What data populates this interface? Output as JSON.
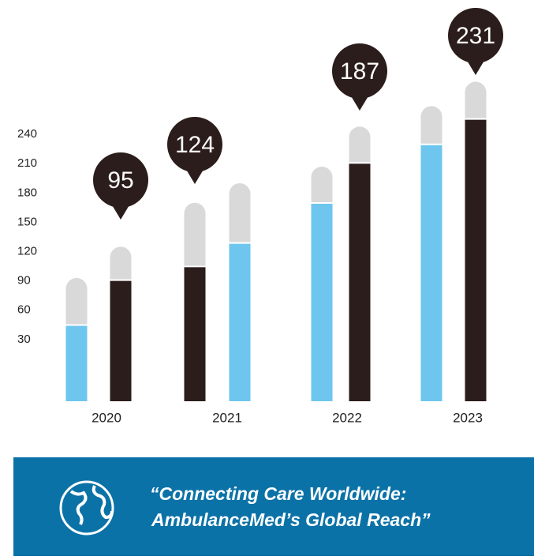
{
  "chart_data": {
    "type": "capped_bar",
    "categories": [
      "2020",
      "2021",
      "2022",
      "2023"
    ],
    "ylim": [
      -30,
      300
    ],
    "yticks": [
      30,
      60,
      90,
      120,
      150,
      180,
      210,
      240
    ],
    "cap_color": "#d9d9d9",
    "series": [
      {
        "colors": [
          "#6ec6ee",
          "#2b1d1b",
          "#6ec6ee",
          "#6ec6ee"
        ],
        "values": [
          44,
          104,
          169,
          229
        ],
        "caps": [
          49,
          66,
          38,
          40
        ]
      },
      {
        "colors": [
          "#2b1d1b",
          "#6ec6ee",
          "#2b1d1b",
          "#2b1d1b"
        ],
        "values": [
          90,
          128,
          210,
          255
        ],
        "caps": [
          35,
          62,
          38,
          39
        ]
      }
    ],
    "badges": [
      95,
      124,
      187,
      231
    ],
    "badge_color": "#2b1d1b"
  },
  "banner": {
    "lines": [
      "“Connecting Care Worldwide:",
      "AmbulanceMed’s Global Reach”"
    ]
  }
}
